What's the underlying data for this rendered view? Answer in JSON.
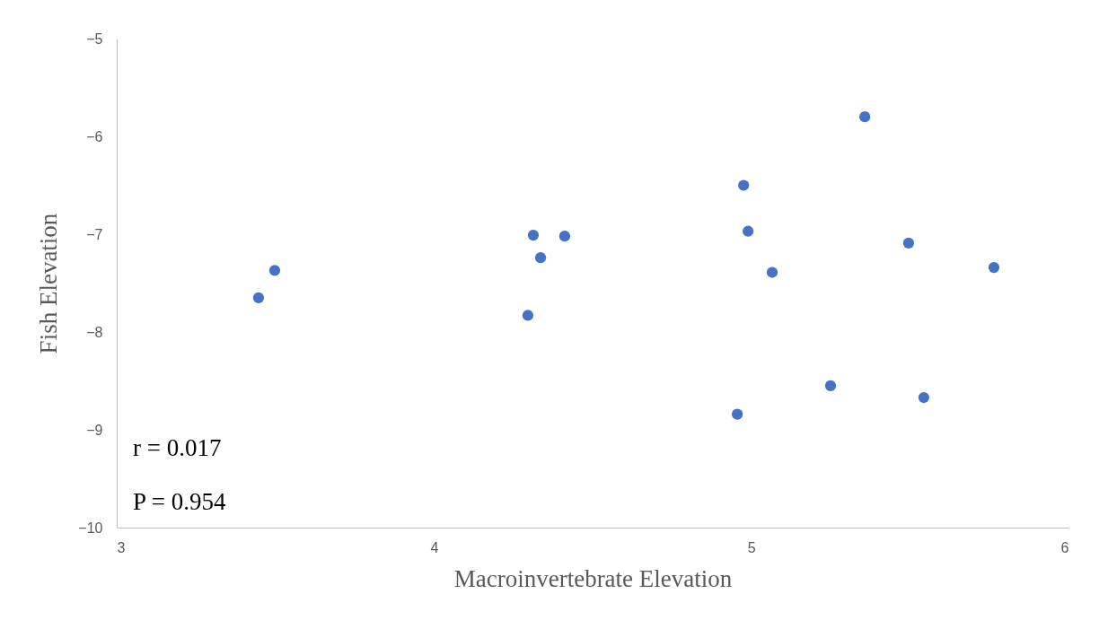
{
  "chart_data": {
    "type": "scatter",
    "xlabel": "Macroinvertebrate Elevation",
    "ylabel": "Fish Elevation",
    "x": [
      3.447,
      3.498,
      4.313,
      4.336,
      4.412,
      4.296,
      4.976,
      4.99,
      5.066,
      5.358,
      5.496,
      5.765,
      5.25,
      5.544,
      4.956
    ],
    "series": [
      {
        "color": "#4472c4",
        "values": [
          -7.65,
          -7.37,
          -7.01,
          -7.24,
          -7.02,
          -7.83,
          -6.5,
          -6.97,
          -7.39,
          -5.8,
          -7.09,
          -7.34,
          -8.55,
          -8.67,
          -8.84
        ]
      }
    ],
    "xlim": [
      3,
      6
    ],
    "xticks": [
      3,
      4,
      5,
      6
    ],
    "ylim": [
      -10,
      -5
    ],
    "yticks": [
      -10,
      -9,
      -8,
      -7,
      -6,
      -5
    ],
    "marker": "circle",
    "grid": false,
    "annotations": [
      "r = 0.017",
      "P = 0.954"
    ]
  }
}
